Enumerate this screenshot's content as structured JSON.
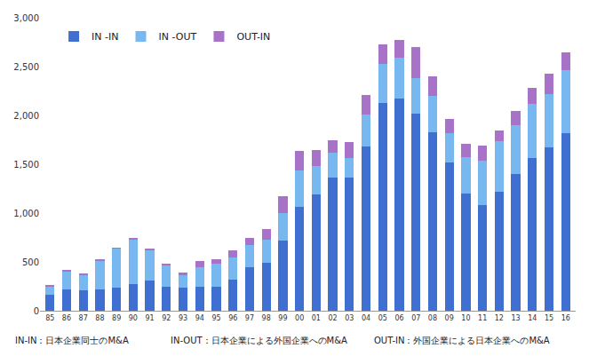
{
  "chart_data": {
    "type": "bar",
    "stacked": true,
    "categories": [
      "85",
      "86",
      "87",
      "88",
      "89",
      "90",
      "91",
      "92",
      "93",
      "94",
      "95",
      "96",
      "97",
      "98",
      "99",
      "00",
      "01",
      "02",
      "03",
      "04",
      "05",
      "06",
      "07",
      "08",
      "09",
      "10",
      "11",
      "12",
      "13",
      "14",
      "15",
      "16"
    ],
    "series": [
      {
        "name": "IN -IN",
        "color": "#3f6fd1",
        "values": [
          160,
          220,
          210,
          220,
          240,
          270,
          310,
          250,
          240,
          250,
          250,
          320,
          450,
          490,
          720,
          1060,
          1190,
          1360,
          1360,
          1680,
          2130,
          2175,
          2015,
          1830,
          1520,
          1200,
          1080,
          1220,
          1400,
          1560,
          1670,
          1820
        ]
      },
      {
        "name": "IN -OUT",
        "color": "#78b8f0",
        "values": [
          90,
          180,
          150,
          290,
          400,
          460,
          310,
          210,
          120,
          200,
          230,
          230,
          220,
          240,
          280,
          380,
          290,
          260,
          200,
          330,
          400,
          420,
          370,
          370,
          300,
          370,
          460,
          520,
          500,
          560,
          550,
          640
        ]
      },
      {
        "name": "OUT-IN",
        "color": "#a872c8",
        "values": [
          10,
          17,
          20,
          10,
          5,
          20,
          15,
          20,
          35,
          55,
          50,
          70,
          80,
          105,
          170,
          195,
          170,
          130,
          170,
          200,
          195,
          180,
          315,
          200,
          140,
          135,
          150,
          110,
          150,
          165,
          210,
          190
        ]
      }
    ],
    "ylim": [
      0,
      3000
    ],
    "yticks": [
      0,
      500,
      {
        "value": 1000,
        "label": "1,000"
      },
      {
        "value": 1500,
        "label": "1,500"
      },
      {
        "value": 2000,
        "label": "2,000"
      },
      {
        "value": 2500,
        "label": "2,500"
      },
      {
        "value": 3000,
        "label": "3,000"
      }
    ],
    "grid": false,
    "legend": "top-left",
    "annotations": [
      "IN-IN：日本企業同士のM&A",
      "IN-OUT：日本企業による外国企業へのM&A",
      "OUT-IN：外国企業による日本企業へのM&A"
    ]
  }
}
